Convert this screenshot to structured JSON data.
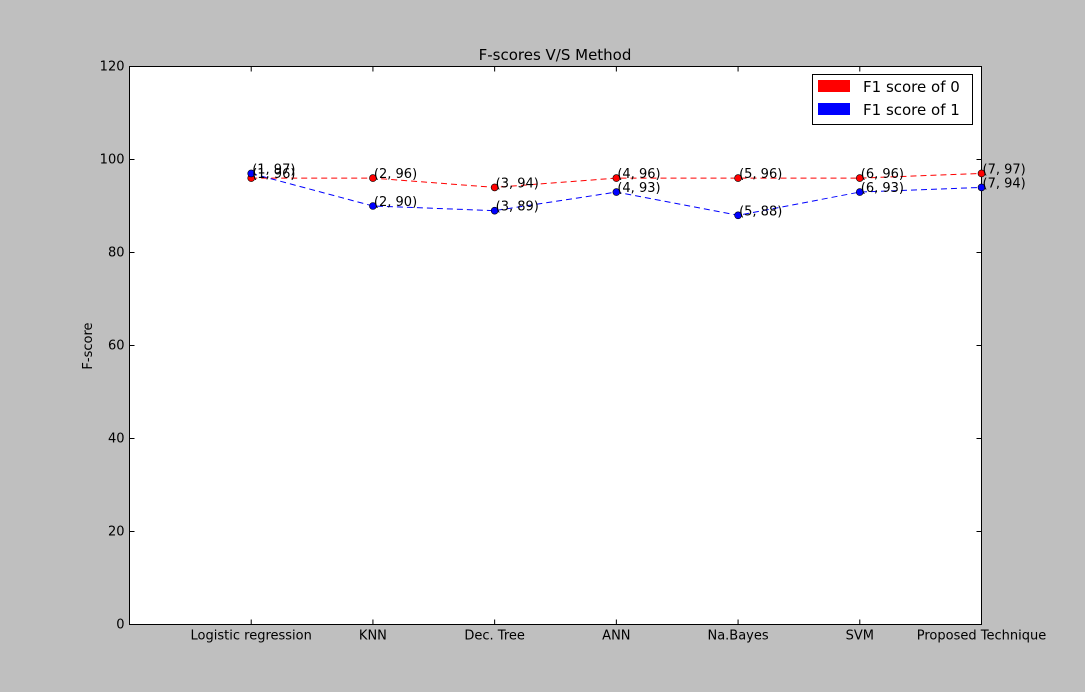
{
  "chart_data": {
    "type": "line",
    "title": "F-scores V/S Method",
    "xlabel": "",
    "ylabel": "F-score",
    "x": [
      1,
      2,
      3,
      4,
      5,
      6,
      7
    ],
    "categories": [
      "Logistic regression",
      "KNN",
      "Dec. Tree",
      "ANN",
      "Na.Bayes",
      "SVM",
      "Proposed Technique"
    ],
    "xlim": [
      0,
      7
    ],
    "ylim": [
      0,
      120
    ],
    "yticks": [
      0,
      20,
      40,
      60,
      80,
      100,
      120
    ],
    "grid": false,
    "legend_position": "top-right",
    "series": [
      {
        "name": "F1 score of 0",
        "color": "#ff0000",
        "values": [
          96,
          96,
          94,
          96,
          96,
          96,
          97
        ],
        "labels": [
          "(1, 96)",
          "(2, 96)",
          "(3, 94)",
          "(4, 96)",
          "(5, 96)",
          "(6, 96)",
          "(7, 97)"
        ]
      },
      {
        "name": "F1 score of 1",
        "color": "#0000ff",
        "values": [
          97,
          90,
          89,
          93,
          88,
          93,
          94
        ],
        "labels": [
          "(1, 97)",
          "(2, 90)",
          "(3, 89)",
          "(4, 93)",
          "(5, 88)",
          "(6, 93)",
          "(7, 94)"
        ]
      }
    ]
  }
}
